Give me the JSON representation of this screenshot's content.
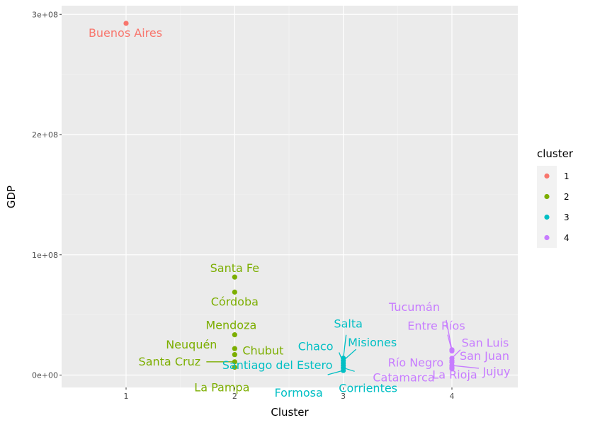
{
  "chart_data": {
    "type": "scatter",
    "title": "",
    "xlabel": "Cluster",
    "ylabel": "GDP",
    "xlim": [
      0.5,
      4.5
    ],
    "ylim": [
      -10000000,
      300000000
    ],
    "x_ticks": [
      1,
      2,
      3,
      4
    ],
    "x_tick_labels": [
      "1",
      "2",
      "3",
      "4"
    ],
    "y_ticks": [
      0,
      100000000,
      200000000,
      300000000
    ],
    "y_tick_labels": [
      "0e+00",
      "1e+08",
      "2e+08",
      "3e+08"
    ],
    "grid": true,
    "legend": {
      "title": "cluster",
      "placement": "right",
      "entries": [
        "1",
        "2",
        "3",
        "4"
      ]
    },
    "colors": {
      "1": "#F8766D",
      "2": "#7CAE00",
      "3": "#00BFC4",
      "4": "#C77CFF"
    },
    "points": [
      {
        "label": "Buenos Aires",
        "cluster": 1,
        "x": 1,
        "y": 292500000
      },
      {
        "label": "Santa Fe",
        "cluster": 2,
        "x": 2,
        "y": 81500000
      },
      {
        "label": "Córdoba",
        "cluster": 2,
        "x": 2,
        "y": 69000000
      },
      {
        "label": "Mendoza",
        "cluster": 2,
        "x": 2,
        "y": 33500000
      },
      {
        "label": "Neuquén",
        "cluster": 2,
        "x": 2,
        "y": 22000000
      },
      {
        "label": "Chubut",
        "cluster": 2,
        "x": 2,
        "y": 17000000
      },
      {
        "label": "Santa Cruz",
        "cluster": 2,
        "x": 2,
        "y": 11000000
      },
      {
        "label": "La Pampa",
        "cluster": 2,
        "x": 2,
        "y": 6500000
      },
      {
        "label": "Salta",
        "cluster": 3,
        "x": 3,
        "y": 14000000
      },
      {
        "label": "Misiones",
        "cluster": 3,
        "x": 3,
        "y": 12000000
      },
      {
        "label": "Chaco",
        "cluster": 3,
        "x": 3,
        "y": 10000000
      },
      {
        "label": "Santiago del Estero",
        "cluster": 3,
        "x": 3,
        "y": 8000000
      },
      {
        "label": "Corrientes",
        "cluster": 3,
        "x": 3,
        "y": 6000000
      },
      {
        "label": "Formosa",
        "cluster": 3,
        "x": 3,
        "y": 3800000
      },
      {
        "label": "Tucumán",
        "cluster": 4,
        "x": 4,
        "y": 21000000
      },
      {
        "label": "Entre Ríos",
        "cluster": 4,
        "x": 4,
        "y": 20000000
      },
      {
        "label": "San Luis",
        "cluster": 4,
        "x": 4,
        "y": 14000000
      },
      {
        "label": "San Juan",
        "cluster": 4,
        "x": 4,
        "y": 12000000
      },
      {
        "label": "Río Negro",
        "cluster": 4,
        "x": 4,
        "y": 10500000
      },
      {
        "label": "Jujuy",
        "cluster": 4,
        "x": 4,
        "y": 8000000
      },
      {
        "label": "La Rioja",
        "cluster": 4,
        "x": 4,
        "y": 6500000
      },
      {
        "label": "Catamarca",
        "cluster": 4,
        "x": 4,
        "y": 5200000
      }
    ]
  }
}
